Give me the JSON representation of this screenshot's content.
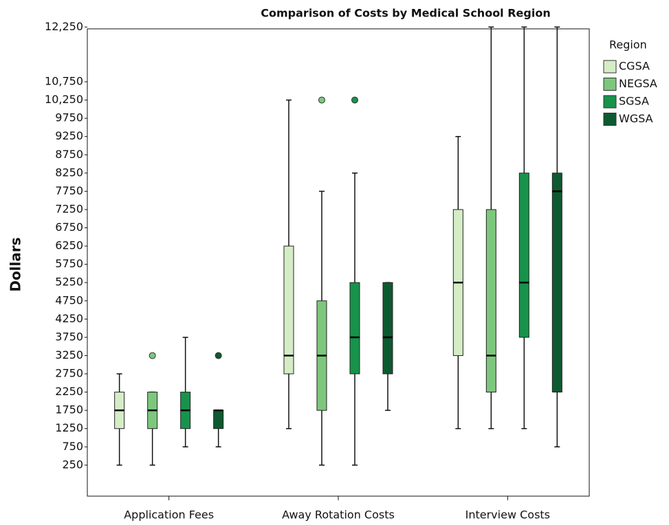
{
  "chart_data": {
    "type": "box",
    "title": "Comparison of Costs by Medical School Region",
    "ylabel": "Dollars",
    "legend_title": "Region",
    "legend": "right",
    "categories": [
      "Application Fees",
      "Away Rotation Costs",
      "Interview Costs"
    ],
    "ylim": [
      -600,
      12350
    ],
    "yticks": [
      250,
      750,
      1250,
      1750,
      2250,
      2750,
      3250,
      3750,
      4250,
      4750,
      5250,
      5750,
      6250,
      6750,
      7250,
      7750,
      8250,
      8750,
      9250,
      9750,
      {
        "value": 10250,
        "label": "10,250"
      },
      {
        "value": 10750,
        "label": "10,750"
      },
      {
        "value": 12250,
        "label": "12,250"
      }
    ],
    "series": [
      {
        "name": "CGSA",
        "color": "#d5edc6",
        "values": [
          {
            "low": 250,
            "q1": 1250,
            "median": 1750,
            "q3": 2250,
            "high": 2750,
            "outliers": []
          },
          {
            "low": 1250,
            "q1": 2750,
            "median": 3250,
            "q3": 6250,
            "high": 10250,
            "outliers": []
          },
          {
            "low": 1250,
            "q1": 3250,
            "median": 5250,
            "q3": 7250,
            "high": 9250,
            "outliers": []
          }
        ]
      },
      {
        "name": "NEGSA",
        "color": "#7dc77d",
        "values": [
          {
            "low": 250,
            "q1": 1250,
            "median": 1750,
            "q3": 2250,
            "high": 2250,
            "outliers": [
              3250
            ]
          },
          {
            "low": 250,
            "q1": 1750,
            "median": 3250,
            "q3": 4750,
            "high": 7750,
            "outliers": [
              10250
            ]
          },
          {
            "low": 1250,
            "q1": 2250,
            "median": 3250,
            "q3": 7250,
            "high": 12250,
            "outliers": []
          }
        ]
      },
      {
        "name": "SGSA",
        "color": "#17934b",
        "values": [
          {
            "low": 750,
            "q1": 1250,
            "median": 1750,
            "q3": 2250,
            "high": 3750,
            "outliers": []
          },
          {
            "low": 250,
            "q1": 2750,
            "median": 3750,
            "q3": 5250,
            "high": 8250,
            "outliers": [
              10250
            ]
          },
          {
            "low": 1250,
            "q1": 3750,
            "median": 5250,
            "q3": 8250,
            "high": 12250,
            "outliers": []
          }
        ]
      },
      {
        "name": "WGSA",
        "color": "#0e5a30",
        "values": [
          {
            "low": 750,
            "q1": 1250,
            "median": 1750,
            "q3": 1750,
            "high": 1750,
            "outliers": [
              3250
            ]
          },
          {
            "low": 1750,
            "q1": 2750,
            "median": 3750,
            "q3": 5250,
            "high": 5250,
            "outliers": []
          },
          {
            "low": 750,
            "q1": 2250,
            "median": 7750,
            "q3": 8250,
            "high": 12250,
            "outliers": []
          }
        ]
      }
    ]
  }
}
